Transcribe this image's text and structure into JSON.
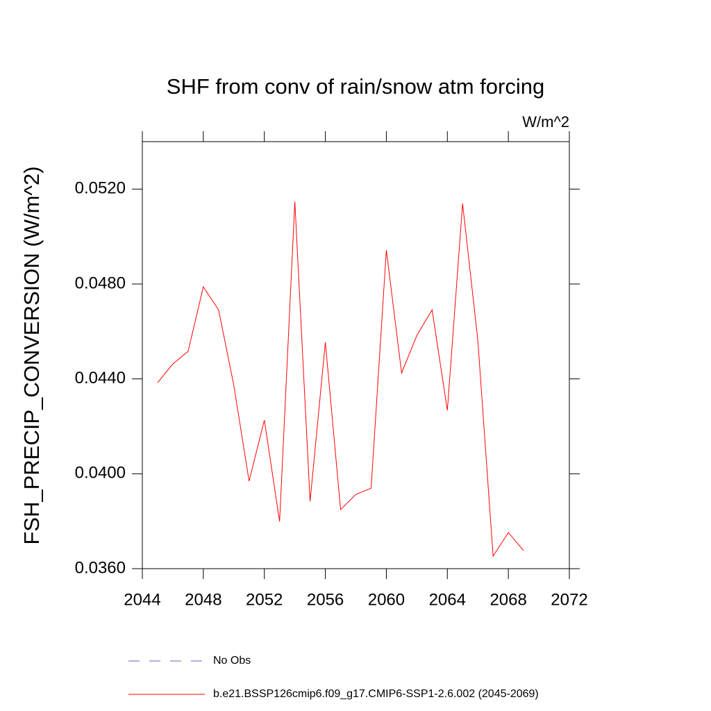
{
  "chart_data": {
    "type": "line",
    "title": "SHF from conv of rain/snow atm forcing",
    "units_label": "W/m^2",
    "y_label": "FSH_PRECIP_CONVERSION  (W/m^2)",
    "x": [
      2045,
      2046,
      2047,
      2048,
      2049,
      2050,
      2051,
      2052,
      2053,
      2054,
      2055,
      2056,
      2057,
      2058,
      2059,
      2060,
      2061,
      2062,
      2063,
      2064,
      2065,
      2066,
      2067,
      2068,
      2069
    ],
    "series": [
      {
        "name": "No Obs",
        "color": "#6a5acd",
        "dashed": true,
        "values": [
          null,
          null,
          null,
          null,
          null,
          null,
          null,
          null,
          null,
          null,
          null,
          null,
          null,
          null,
          null,
          null,
          null,
          null,
          null,
          null,
          null,
          null,
          null,
          null,
          null
        ]
      },
      {
        "name": "b.e21.BSSP126cmip6.f09_g17.CMIP6-SSP1-2.6.002 (2045-2069)",
        "color": "#ff0000",
        "dashed": false,
        "values": [
          0.04384,
          0.04463,
          0.04516,
          0.04788,
          0.04691,
          0.04372,
          0.03969,
          0.04226,
          0.03799,
          0.05147,
          0.03884,
          0.04554,
          0.03849,
          0.03913,
          0.03939,
          0.04943,
          0.04425,
          0.04583,
          0.04691,
          0.04267,
          0.05139,
          0.04562,
          0.03653,
          0.03752,
          0.03676
        ]
      }
    ],
    "xlim": [
      2044,
      2072
    ],
    "xticks": [
      2044,
      2048,
      2052,
      2056,
      2060,
      2064,
      2068,
      2072
    ],
    "ylim": [
      0.036,
      0.054
    ],
    "yticks": [
      {
        "value": 0.036,
        "label": "0.0360"
      },
      {
        "value": 0.04,
        "label": "0.0400"
      },
      {
        "value": 0.044,
        "label": "0.0440"
      },
      {
        "value": 0.048,
        "label": "0.0480"
      },
      {
        "value": 0.052,
        "label": "0.0520"
      }
    ]
  }
}
